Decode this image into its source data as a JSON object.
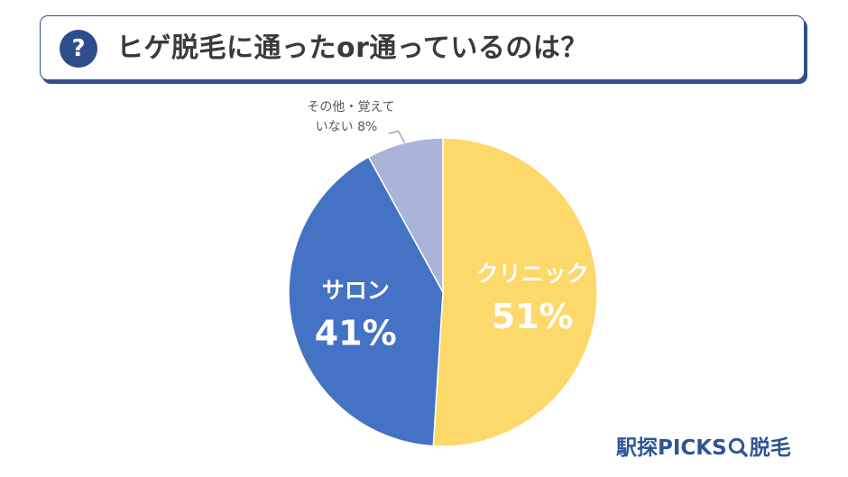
{
  "header": {
    "icon": "question-icon",
    "icon_glyph": "?",
    "title": "ヒゲ脱毛に通ったor通っているのは？"
  },
  "chart_data": {
    "type": "pie",
    "title": "ヒゲ脱毛に通ったor通っているのは？",
    "slices": [
      {
        "label": "クリニック",
        "value": 51,
        "value_text": "51%",
        "color": "#fdd86a"
      },
      {
        "label": "サロン",
        "value": 41,
        "value_text": "41%",
        "color": "#4472c4"
      },
      {
        "label_lines": [
          "その他・覚えて",
          "いない"
        ],
        "value": 8,
        "value_text": "8%",
        "color": "#a9b4d8"
      }
    ],
    "start": "12 o'clock",
    "direction": "clockwise"
  },
  "brand": {
    "text": "駅探PICKS",
    "icon": "magnifier-icon",
    "suffix": "脱毛"
  }
}
